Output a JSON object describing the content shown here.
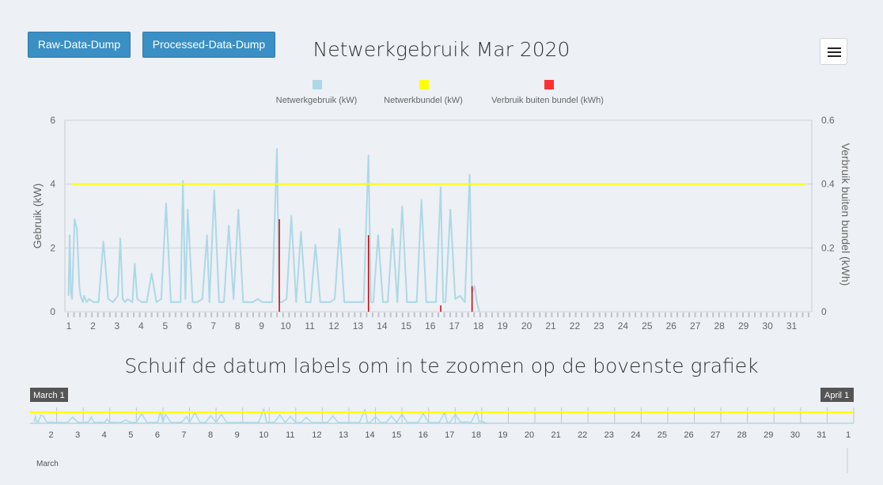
{
  "buttons": {
    "raw": "Raw-Data-Dump",
    "processed": "Processed-Data-Dump"
  },
  "menu_icon": "hamburger-menu-icon",
  "chart_data": [
    {
      "type": "line",
      "title": "Netwerkgebruik Mar 2020",
      "legend": [
        {
          "name": "Netwerkgebruik (kW)",
          "color": "#add8e6"
        },
        {
          "name": "Netwerkbundel (kW)",
          "color": "#ffff00"
        },
        {
          "name": "Verbruik buiten bundel (kWh)",
          "color": "#ff3030"
        }
      ],
      "legend_position": "top-center",
      "ylabel": "Gebruik (kW)",
      "ylabel_right": "Verbruik buiten bundel (kWh)",
      "ylim": [
        0,
        6
      ],
      "yticks": [
        "0",
        "2",
        "4",
        "6"
      ],
      "ylim_right": [
        0,
        0.6
      ],
      "yticks_right": [
        "0",
        "0.2",
        "0.4",
        "0.6"
      ],
      "xlim": [
        1,
        32
      ],
      "xticks": [
        "1",
        "2",
        "3",
        "4",
        "5",
        "6",
        "7",
        "8",
        "9",
        "10",
        "11",
        "12",
        "13",
        "14",
        "15",
        "16",
        "17",
        "18",
        "19",
        "20",
        "21",
        "22",
        "23",
        "24",
        "25",
        "26",
        "27",
        "28",
        "29",
        "30",
        "31"
      ],
      "grid": true,
      "series": [
        {
          "name": "Netwerkgebruik (kW)",
          "x": [
            1.15,
            1.2,
            1.25,
            1.3,
            1.4,
            1.5,
            1.6,
            1.65,
            1.7,
            1.75,
            1.8,
            1.9,
            2.0,
            2.2,
            2.4,
            2.6,
            2.8,
            3.0,
            3.2,
            3.3,
            3.4,
            3.5,
            3.6,
            3.8,
            3.9,
            4.0,
            4.2,
            4.4,
            4.6,
            4.8,
            5.0,
            5.2,
            5.4,
            5.6,
            5.8,
            5.9,
            6.0,
            6.1,
            6.3,
            6.5,
            6.7,
            6.9,
            7.0,
            7.2,
            7.4,
            7.5,
            7.6,
            7.8,
            8.0,
            8.2,
            8.4,
            8.6,
            8.8,
            9.0,
            9.2,
            9.4,
            9.6,
            9.8,
            9.9,
            10.0,
            10.2,
            10.4,
            10.6,
            10.8,
            11.0,
            11.2,
            11.4,
            11.6,
            11.8,
            12.0,
            12.2,
            12.4,
            12.6,
            12.8,
            13.0,
            13.2,
            13.4,
            13.6,
            13.7,
            13.8,
            14.0,
            14.2,
            14.4,
            14.6,
            14.8,
            15.0,
            15.2,
            15.4,
            15.6,
            15.8,
            16.0,
            16.2,
            16.4,
            16.6,
            16.7,
            16.8,
            17.0,
            17.2,
            17.4,
            17.6,
            17.8,
            17.9,
            18.0,
            18.1,
            18.2
          ],
          "values": [
            0.5,
            2.4,
            0.6,
            0.4,
            2.9,
            2.6,
            0.8,
            0.5,
            0.4,
            0.3,
            0.5,
            0.3,
            0.4,
            0.3,
            0.3,
            2.2,
            0.4,
            0.3,
            0.5,
            2.3,
            0.4,
            0.3,
            0.4,
            0.3,
            1.5,
            0.4,
            0.3,
            0.3,
            1.2,
            0.3,
            0.4,
            3.4,
            0.3,
            0.3,
            0.3,
            4.1,
            0.4,
            3.2,
            0.3,
            0.3,
            0.4,
            2.4,
            0.3,
            3.8,
            0.3,
            0.3,
            0.3,
            2.7,
            0.4,
            3.2,
            0.3,
            0.3,
            0.3,
            0.4,
            0.3,
            0.3,
            0.3,
            5.1,
            0.3,
            0.3,
            0.4,
            3.0,
            0.3,
            2.5,
            0.3,
            0.3,
            2.1,
            0.3,
            0.3,
            0.3,
            0.4,
            2.6,
            0.3,
            0.3,
            0.3,
            0.3,
            0.3,
            4.9,
            0.3,
            0.3,
            2.4,
            0.3,
            0.3,
            2.6,
            0.3,
            3.3,
            0.3,
            0.3,
            0.3,
            3.5,
            0.3,
            0.3,
            0.3,
            3.9,
            0.3,
            0.3,
            3.2,
            0.4,
            0.5,
            0.3,
            4.3,
            0.6,
            0.8,
            0.3,
            0.0
          ],
          "color": "#add8e6"
        },
        {
          "name": "Netwerkbundel (kW)",
          "x": [
            1,
            32
          ],
          "values": [
            4,
            4
          ],
          "color": "#ffff00"
        },
        {
          "name": "Verbruik buiten bundel (kWh)",
          "axis": "right",
          "x": [
            9.9,
            13.6,
            16.6,
            17.9
          ],
          "values": [
            0.29,
            0.24,
            0.02,
            0.08
          ],
          "color": "#cc0000"
        }
      ]
    },
    {
      "type": "area",
      "title": "Schuif de datum labels om in te zoomen op de bovenste grafiek",
      "range_labels": [
        "March 1",
        "April 1"
      ],
      "xticks": [
        "2",
        "3",
        "4",
        "5",
        "6",
        "7",
        "8",
        "9",
        "10",
        "11",
        "12",
        "13",
        "14",
        "15",
        "16",
        "17",
        "18",
        "19",
        "20",
        "21",
        "22",
        "23",
        "24",
        "25",
        "26",
        "27",
        "28",
        "29",
        "30",
        "31",
        "1"
      ],
      "month_label": "March",
      "series": [
        {
          "name": "Netwerkgebruik (kW)",
          "color": "#add8e6"
        },
        {
          "name": "Netwerkbundel (kW)",
          "color": "#ffff00"
        }
      ]
    }
  ]
}
